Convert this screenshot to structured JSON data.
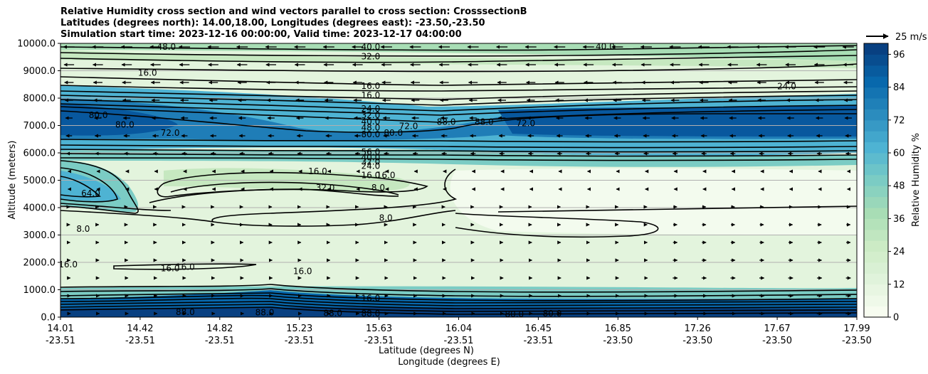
{
  "chart_data": {
    "type": "contour",
    "title_lines": [
      "Relative Humidity cross section and wind vectors parallel to cross section: CrosssectionB",
      "Latitudes (degrees north): 14.00,18.00, Longitudes (degrees east): -23.50,-23.50",
      "Simulation start time: 2023-12-16 00:00:00, Valid time: 2023-12-17 04:00:00"
    ],
    "xlabel_lines": [
      "Latitude (degrees N)",
      "Longitude (degrees E)"
    ],
    "ylabel": "Altitude (meters)",
    "x_ticks": [
      {
        "lat": "14.01",
        "lon": "-23.51"
      },
      {
        "lat": "14.42",
        "lon": "-23.51"
      },
      {
        "lat": "14.82",
        "lon": "-23.51"
      },
      {
        "lat": "15.23",
        "lon": "-23.51"
      },
      {
        "lat": "15.63",
        "lon": "-23.51"
      },
      {
        "lat": "16.04",
        "lon": "-23.51"
      },
      {
        "lat": "16.45",
        "lon": "-23.51"
      },
      {
        "lat": "16.85",
        "lon": "-23.50"
      },
      {
        "lat": "17.26",
        "lon": "-23.50"
      },
      {
        "lat": "17.67",
        "lon": "-23.50"
      },
      {
        "lat": "17.99",
        "lon": "-23.50"
      }
    ],
    "y_ticks": [
      "0.0",
      "1000.0",
      "2000.0",
      "3000.0",
      "4000.0",
      "5000.0",
      "6000.0",
      "7000.0",
      "8000.0",
      "9000.0",
      "10000.0"
    ],
    "ylim": [
      0,
      10000
    ],
    "grid": "horizontal",
    "colorbar": {
      "label": "Relative Humidity %",
      "ticks": [
        "0",
        "12",
        "24",
        "36",
        "48",
        "60",
        "72",
        "84",
        "96"
      ],
      "range": [
        0,
        100
      ],
      "colormap": "GnBu",
      "colors": [
        "#f7fcf0",
        "#e0f3db",
        "#ccebc5",
        "#a8ddb5",
        "#7bccc4",
        "#4eb3d3",
        "#2b8cbe",
        "#0868ac",
        "#084081"
      ]
    },
    "quiver_key": "25 m/s",
    "contour_labels": [
      {
        "text": "40.0",
        "xi": 0.38,
        "alt": 9850
      },
      {
        "text": "48.0",
        "xi": 0.11,
        "alt": 9850
      },
      {
        "text": "40.0",
        "xi": 0.69,
        "alt": 9860
      },
      {
        "text": "32.0",
        "xi": 0.38,
        "alt": 9500
      },
      {
        "text": "16.0",
        "xi": 0.085,
        "alt": 8900
      },
      {
        "text": "24.0",
        "xi": 0.93,
        "alt": 8400
      },
      {
        "text": "16.0",
        "xi": 0.38,
        "alt": 8420
      },
      {
        "text": "16.0",
        "xi": 0.38,
        "alt": 8080
      },
      {
        "text": "24.0",
        "xi": 0.38,
        "alt": 7580
      },
      {
        "text": "32.0",
        "xi": 0.38,
        "alt": 7350
      },
      {
        "text": "40.0",
        "xi": 0.38,
        "alt": 7120
      },
      {
        "text": "48.0",
        "xi": 0.38,
        "alt": 6900
      },
      {
        "text": "80.0",
        "xi": 0.38,
        "alt": 6650
      },
      {
        "text": "80.0",
        "xi": 0.02,
        "alt": 7350
      },
      {
        "text": "80.0",
        "xi": 0.055,
        "alt": 7000
      },
      {
        "text": "72.0",
        "xi": 0.115,
        "alt": 6700
      },
      {
        "text": "80.0",
        "xi": 0.41,
        "alt": 6700
      },
      {
        "text": "72.0",
        "xi": 0.43,
        "alt": 6950
      },
      {
        "text": "88.0",
        "xi": 0.48,
        "alt": 7100
      },
      {
        "text": "88.0",
        "xi": 0.53,
        "alt": 7100
      },
      {
        "text": "72.0",
        "xi": 0.585,
        "alt": 7050
      },
      {
        "text": "56.0",
        "xi": 0.38,
        "alt": 6000
      },
      {
        "text": "40.0",
        "xi": 0.38,
        "alt": 5800
      },
      {
        "text": "32.0",
        "xi": 0.38,
        "alt": 5650
      },
      {
        "text": "24.0",
        "xi": 0.38,
        "alt": 5500
      },
      {
        "text": "64.0",
        "xi": 0.01,
        "alt": 4500
      },
      {
        "text": "16.0",
        "xi": 0.31,
        "alt": 5300
      },
      {
        "text": "16.0",
        "xi": 0.38,
        "alt": 5150
      },
      {
        "text": "16.0",
        "xi": 0.4,
        "alt": 5150
      },
      {
        "text": "32.0",
        "xi": 0.32,
        "alt": 4700
      },
      {
        "text": "8.0",
        "xi": 0.39,
        "alt": 4700
      },
      {
        "text": "8.0",
        "xi": 0.4,
        "alt": 3600
      },
      {
        "text": "8.0",
        "xi": 0.0,
        "alt": 3200
      },
      {
        "text": "16.0",
        "xi": -0.02,
        "alt": 1900
      },
      {
        "text": "16.0",
        "xi": 0.115,
        "alt": 1750
      },
      {
        "text": "16.0",
        "xi": 0.135,
        "alt": 1800
      },
      {
        "text": "16.0",
        "xi": 0.29,
        "alt": 1650
      },
      {
        "text": "16.0",
        "xi": 0.38,
        "alt": 660
      },
      {
        "text": "88.0",
        "xi": 0.38,
        "alt": 100
      },
      {
        "text": "80.0",
        "xi": 0.57,
        "alt": 80
      },
      {
        "text": "80.0",
        "xi": 0.62,
        "alt": 110
      },
      {
        "text": "88.0",
        "xi": 0.135,
        "alt": 160
      },
      {
        "text": "88.0",
        "xi": 0.24,
        "alt": 140
      },
      {
        "text": "88.0",
        "xi": 0.33,
        "alt": 120
      }
    ]
  }
}
